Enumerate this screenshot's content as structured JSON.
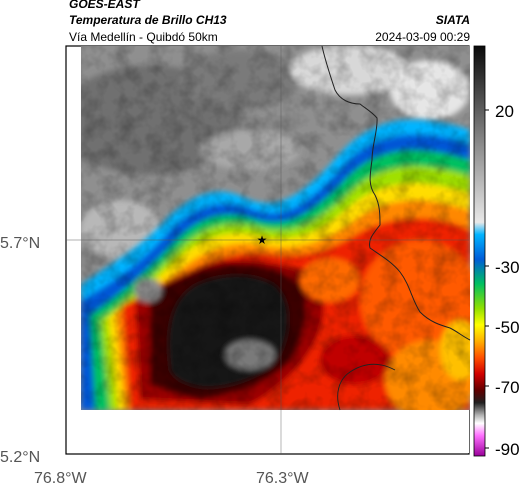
{
  "header": {
    "satellite": "GOES-EAST",
    "product": "Temperatura de Brillo CH13",
    "route": "Vía Medellín - Quibdó 50km",
    "organization": "SIATA",
    "datetime": "2024-03-09 00:29"
  },
  "map": {
    "latitude_labels": [
      "5.7°N",
      "5.2°N"
    ],
    "longitude_labels": [
      "76.8°W",
      "76.3°W"
    ],
    "marker": {
      "icon": "star-icon",
      "lon": -76.32,
      "lat": 5.7
    }
  },
  "colorbar": {
    "tick_labels": [
      "20",
      "-30",
      "-50",
      "-70",
      "-90"
    ],
    "scale": [
      "#f4f4f4",
      "#808080",
      "#101010",
      "#00b4ff",
      "#005cd8",
      "#00c060",
      "#90e000",
      "#ffff00",
      "#ffb000",
      "#ff5000",
      "#e00000",
      "#b00000",
      "#600000",
      "#202020",
      "#a0a0a0",
      "#ffffff",
      "#ff60ff",
      "#a000a0"
    ]
  }
}
